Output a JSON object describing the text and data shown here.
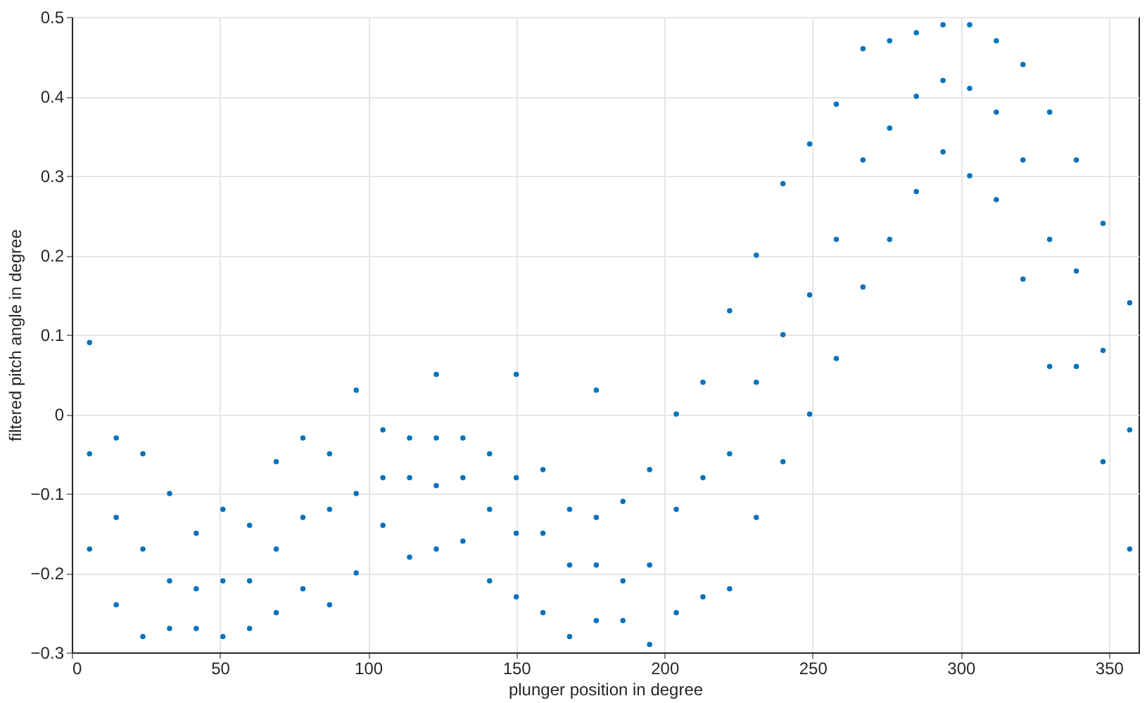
{
  "chart_data": {
    "type": "scatter",
    "xlabel": "plunger position in degree",
    "ylabel": "filtered pitch angle in degree",
    "xlim": [
      0,
      360
    ],
    "xticks": [
      0,
      50,
      100,
      150,
      200,
      250,
      300,
      350
    ],
    "ylim": [
      -0.3,
      0.5
    ],
    "yticks": [
      -0.3,
      -0.2,
      -0.1,
      0,
      0.1,
      0.2,
      0.3,
      0.4,
      0.5
    ],
    "grid": true,
    "marker": "circle",
    "series": [
      {
        "color": "#0072bd",
        "x": [
          6,
          6,
          6,
          15,
          15,
          15,
          24,
          24,
          24,
          33,
          33,
          33,
          42,
          42,
          42,
          51,
          51,
          51,
          60,
          60,
          60,
          69,
          69,
          69,
          78,
          78,
          78,
          87,
          87,
          87,
          96,
          96,
          96,
          105,
          105,
          105,
          114,
          114,
          114,
          123,
          123,
          123,
          123,
          132,
          132,
          132,
          141,
          141,
          141,
          150,
          150,
          150,
          150,
          159,
          159,
          159,
          168,
          168,
          168,
          177,
          177,
          177,
          177,
          186,
          186,
          186,
          195,
          195,
          195,
          204,
          204,
          204,
          213,
          213,
          213,
          222,
          222,
          222,
          231,
          231,
          231,
          240,
          240,
          240,
          249,
          249,
          249,
          258,
          258,
          258,
          267,
          267,
          267,
          276,
          276,
          276,
          285,
          285,
          285,
          294,
          294,
          294,
          303,
          303,
          303,
          312,
          312,
          312,
          321,
          321,
          321,
          330,
          330,
          330,
          339,
          339,
          339,
          348,
          348,
          348,
          357,
          357,
          357
        ],
        "values": [
          0.09,
          -0.05,
          -0.17,
          -0.03,
          -0.13,
          -0.24,
          -0.05,
          -0.17,
          -0.28,
          -0.1,
          -0.21,
          -0.27,
          -0.15,
          -0.22,
          -0.27,
          -0.12,
          -0.21,
          -0.28,
          -0.14,
          -0.21,
          -0.27,
          -0.06,
          -0.17,
          -0.25,
          -0.03,
          -0.13,
          -0.22,
          -0.05,
          -0.12,
          -0.24,
          0.03,
          -0.1,
          -0.2,
          -0.02,
          -0.08,
          -0.14,
          -0.03,
          -0.08,
          -0.18,
          0.05,
          -0.03,
          -0.09,
          -0.17,
          -0.03,
          -0.08,
          -0.16,
          -0.05,
          -0.12,
          -0.21,
          0.05,
          -0.08,
          -0.15,
          -0.23,
          -0.07,
          -0.15,
          -0.25,
          -0.12,
          -0.19,
          -0.28,
          0.03,
          -0.13,
          -0.19,
          -0.26,
          -0.11,
          -0.21,
          -0.26,
          -0.07,
          -0.19,
          -0.29,
          0,
          -0.12,
          -0.25,
          0.04,
          -0.08,
          -0.23,
          0.13,
          -0.05,
          -0.22,
          0.2,
          0.04,
          -0.13,
          0.29,
          0.1,
          -0.06,
          0.34,
          0.15,
          0,
          0.39,
          0.22,
          0.07,
          0.46,
          0.32,
          0.16,
          0.47,
          0.36,
          0.22,
          0.48,
          0.4,
          0.28,
          0.49,
          0.42,
          0.33,
          0.49,
          0.41,
          0.3,
          0.47,
          0.38,
          0.27,
          0.44,
          0.32,
          0.17,
          0.38,
          0.22,
          0.06,
          0.32,
          0.18,
          0.06,
          0.24,
          0.08,
          -0.06,
          0.14,
          -0.02,
          -0.17
        ]
      }
    ]
  }
}
